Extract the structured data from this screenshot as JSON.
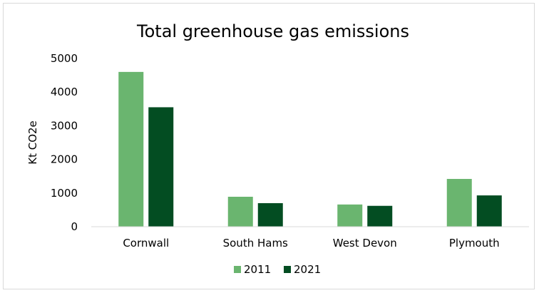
{
  "chart_data": {
    "type": "bar",
    "title": "Total greenhouse gas emissions",
    "xlabel": "",
    "ylabel": "Kt CO2e",
    "categories": [
      "Cornwall",
      "South Hams",
      "West Devon",
      "Plymouth"
    ],
    "series": [
      {
        "name": "2011",
        "color": "#6ab56f",
        "values": [
          4600,
          890,
          660,
          1420
        ]
      },
      {
        "name": "2021",
        "color": "#034d22",
        "values": [
          3550,
          700,
          620,
          930
        ]
      }
    ],
    "ylim": [
      0,
      5000
    ],
    "yticks": [
      0,
      1000,
      2000,
      3000,
      4000,
      5000
    ],
    "grid": false,
    "legend_position": "bottom"
  }
}
